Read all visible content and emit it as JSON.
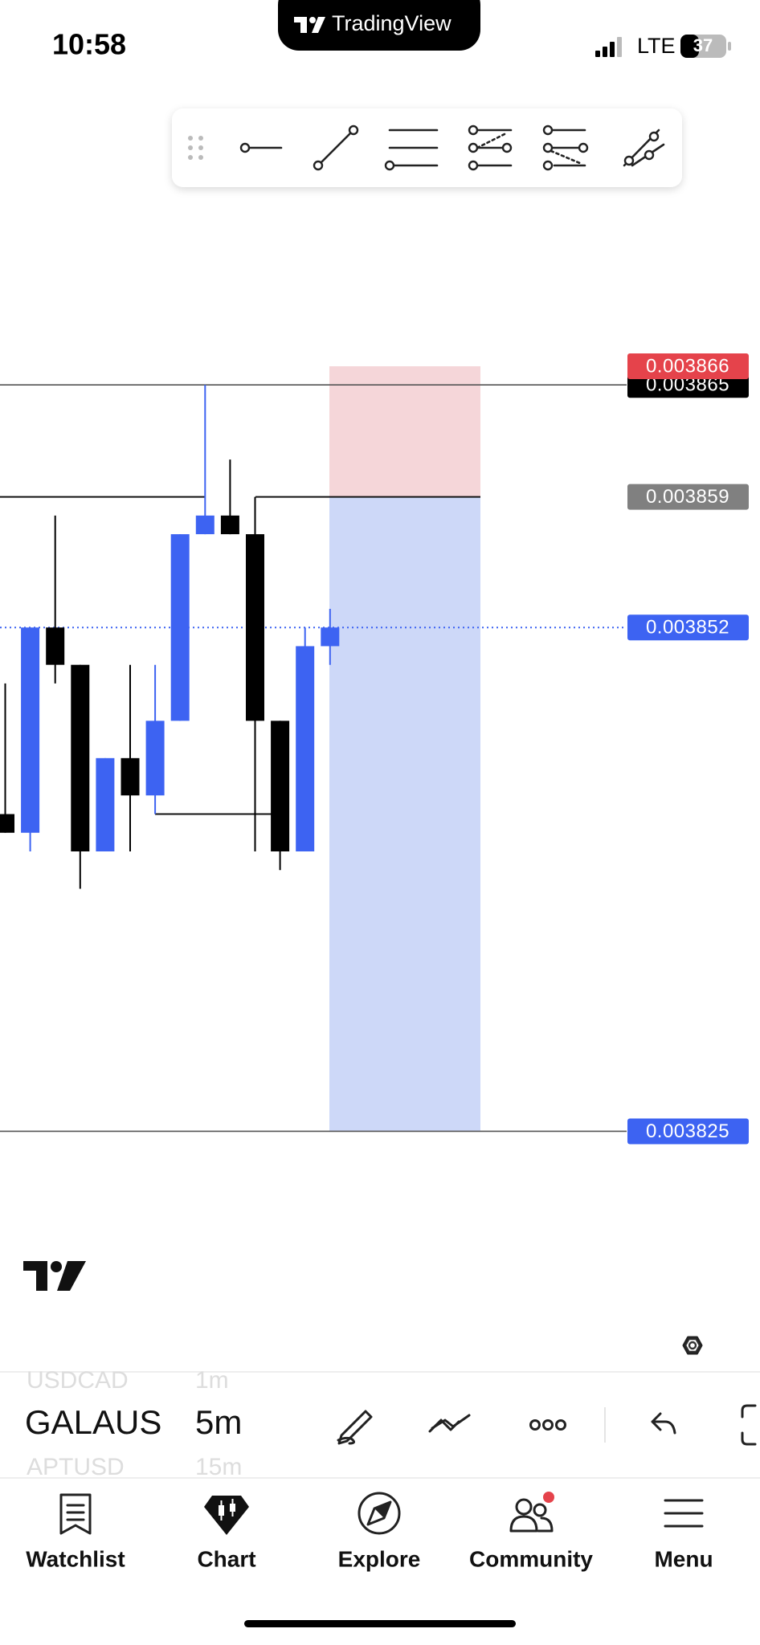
{
  "status_bar": {
    "time": "10:58",
    "network": "LTE",
    "battery": "37"
  },
  "app_badge": "TradingView",
  "chart_data": {
    "type": "candlestick",
    "up_color": "#3d63f2",
    "down_color": "#000000",
    "ylim": [
      0.00382,
      0.003876
    ],
    "candles": [
      {
        "open": 0.003842,
        "high": 0.003849,
        "low": 0.003841,
        "close": 0.003841
      },
      {
        "open": 0.003841,
        "high": 0.003852,
        "low": 0.00384,
        "close": 0.003852
      },
      {
        "open": 0.003852,
        "high": 0.003858,
        "low": 0.003849,
        "close": 0.00385
      },
      {
        "open": 0.00385,
        "high": 0.00385,
        "low": 0.003838,
        "close": 0.00384
      },
      {
        "open": 0.00384,
        "high": 0.003845,
        "low": 0.00384,
        "close": 0.003845
      },
      {
        "open": 0.003845,
        "high": 0.00385,
        "low": 0.00384,
        "close": 0.003843
      },
      {
        "open": 0.003843,
        "high": 0.00385,
        "low": 0.003842,
        "close": 0.003847
      },
      {
        "open": 0.003847,
        "high": 0.003857,
        "low": 0.003847,
        "close": 0.003857
      },
      {
        "open": 0.003857,
        "high": 0.003865,
        "low": 0.003857,
        "close": 0.003858
      },
      {
        "open": 0.003858,
        "high": 0.003861,
        "low": 0.003857,
        "close": 0.003857
      },
      {
        "open": 0.003857,
        "high": 0.003859,
        "low": 0.00384,
        "close": 0.003847
      },
      {
        "open": 0.003847,
        "high": 0.003847,
        "low": 0.003839,
        "close": 0.00384
      },
      {
        "open": 0.00384,
        "high": 0.003852,
        "low": 0.00384,
        "close": 0.003851
      },
      {
        "open": 0.003851,
        "high": 0.003853,
        "low": 0.00385,
        "close": 0.003852
      }
    ],
    "price_labels": {
      "last_line": {
        "value": 0.003865,
        "color": "#000000"
      },
      "stop": {
        "value": 0.003866,
        "color": "#e5434b"
      },
      "entry": {
        "value": 0.003859,
        "color": "#808080"
      },
      "current": {
        "value": 0.003852,
        "color": "#3d63f2"
      },
      "target": {
        "value": 0.003825,
        "color": "#3d63f2"
      }
    },
    "drawn_lines": [
      0.003842
    ]
  },
  "symbols": [
    "USDCAD",
    "GALAUS",
    "APTUSD"
  ],
  "intervals": [
    "1m",
    "5m",
    "15m"
  ],
  "nav": [
    "Watchlist",
    "Chart",
    "Explore",
    "Community",
    "Menu"
  ]
}
